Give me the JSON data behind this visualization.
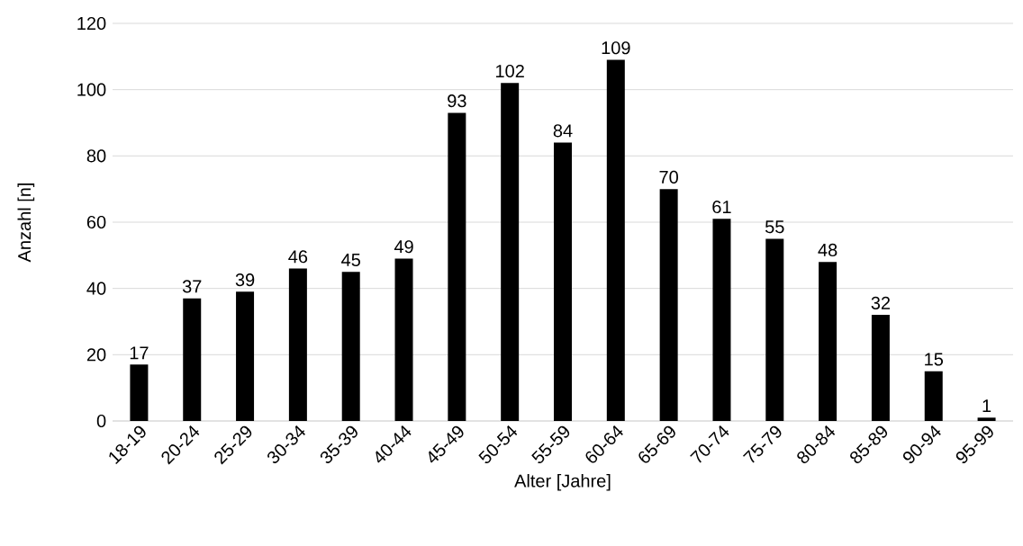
{
  "chart_data": {
    "type": "bar",
    "xlabel": "Alter [Jahre]",
    "ylabel": "Anzahl [n]",
    "categories": [
      "18-19",
      "20-24",
      "25-29",
      "30-34",
      "35-39",
      "40-44",
      "45-49",
      "50-54",
      "55-59",
      "60-64",
      "65-69",
      "70-74",
      "75-79",
      "80-84",
      "85-89",
      "90-94",
      "95-99"
    ],
    "values": [
      17,
      37,
      39,
      46,
      45,
      49,
      93,
      102,
      84,
      109,
      70,
      61,
      55,
      48,
      32,
      15,
      1
    ],
    "color": "#000000",
    "ylim": [
      0,
      120
    ],
    "yticks": [
      0,
      20,
      40,
      60,
      80,
      100,
      120
    ],
    "grid": "y",
    "data_labels": true
  }
}
